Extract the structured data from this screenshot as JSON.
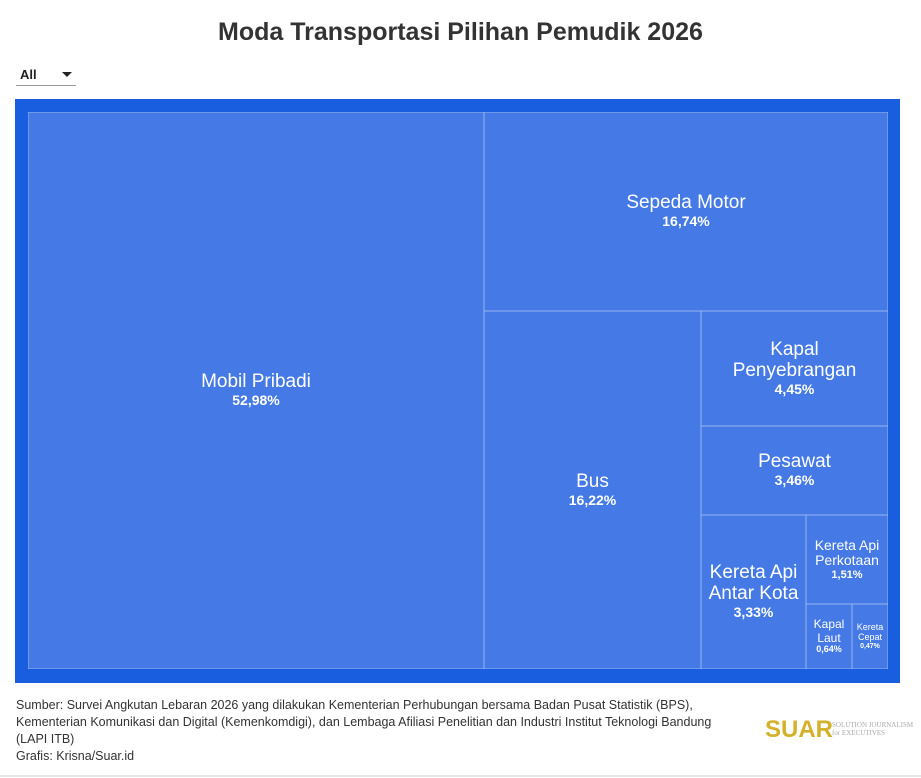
{
  "title": "Moda Transportasi Pilihan Pemudik 2026",
  "filter": {
    "selected": "All"
  },
  "colors": {
    "frame": "#1a5ee0",
    "cell": "#4479e6",
    "logo": "#d4b12a"
  },
  "chart_data": {
    "type": "treemap",
    "title": "Moda Transportasi Pilihan Pemudik 2026",
    "unit": "%",
    "items": [
      {
        "name": "Mobil Pribadi",
        "value": 52.98,
        "label": "52,98%"
      },
      {
        "name": "Sepeda Motor",
        "value": 16.74,
        "label": "16,74%"
      },
      {
        "name": "Bus",
        "value": 16.22,
        "label": "16,22%"
      },
      {
        "name": "Kapal Penyebrangan",
        "value": 4.45,
        "label": "4,45%"
      },
      {
        "name": "Pesawat",
        "value": 3.46,
        "label": "3,46%"
      },
      {
        "name": "Kereta Api Antar Kota",
        "value": 3.33,
        "label": "3,33%"
      },
      {
        "name": "Kereta Api Perkotaan",
        "value": 1.51,
        "label": "1,51%"
      },
      {
        "name": "Kapal Laut",
        "value": 0.64,
        "label": "0,64%"
      },
      {
        "name": "Kereta Cepat",
        "value": 0.47,
        "label": "0,47%"
      }
    ]
  },
  "source": {
    "line1": "Sumber: Survei Angkutan Lebaran 2026 yang dilakukan Kementerian Perhubungan bersama Badan Pusat Statistik (BPS),",
    "line2": "Kementerian Komunikasi dan Digital (Kemenkomdigi), dan Lembaga Afiliasi Penelitian dan Industri Institut Teknologi Bandung",
    "line3": "(LAPI ITB)",
    "credit": "Grafis: Krisna/Suar.id"
  },
  "logo": {
    "name": "SUAR",
    "tagline1": "SOLUTION JOURNALISM",
    "tagline2": "for EXECUTIVES"
  }
}
